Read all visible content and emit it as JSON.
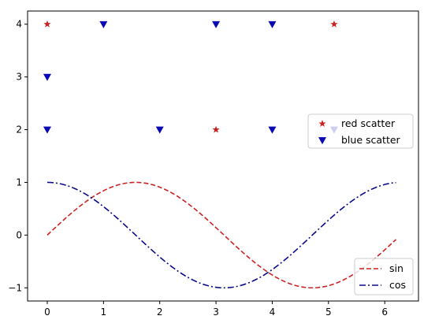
{
  "chart_data": {
    "type": "scatter",
    "title": "",
    "xlabel": "",
    "ylabel": "",
    "xlim": [
      -0.35,
      6.6
    ],
    "ylim": [
      -1.25,
      4.25
    ],
    "xticks": [
      0,
      1,
      2,
      3,
      4,
      5,
      6
    ],
    "yticks": [
      -1,
      0,
      1,
      2,
      3,
      4
    ],
    "xtick_labels": [
      "0",
      "1",
      "2",
      "3",
      "4",
      "5",
      "6"
    ],
    "ytick_labels": [
      "−1",
      "0",
      "1",
      "2",
      "3",
      "4"
    ],
    "grid": false,
    "colors": {
      "red": "#cc2222",
      "blue": "#0a0ab4",
      "navy": "#0a0a8c"
    },
    "scatter_series": [
      {
        "name": "red scatter",
        "marker": "star",
        "color": "#cc2222",
        "points": [
          [
            0,
            4
          ],
          [
            3,
            2
          ],
          [
            5.1,
            4
          ]
        ]
      },
      {
        "name": "blue scatter",
        "marker": "triangle-down",
        "color": "#0a0ab4",
        "points": [
          [
            0,
            3
          ],
          [
            0,
            2
          ],
          [
            1,
            4
          ],
          [
            2,
            2
          ],
          [
            3,
            4
          ],
          [
            4,
            4
          ],
          [
            4,
            2
          ],
          [
            5.1,
            2
          ]
        ]
      }
    ],
    "line_series": [
      {
        "name": "sin",
        "function": "sin",
        "x_range": [
          0,
          6.2
        ],
        "style": "dashed",
        "color": "#cc2222"
      },
      {
        "name": "cos",
        "function": "cos",
        "x_range": [
          0,
          6.2
        ],
        "style": "dashdot",
        "color": "#0a0a8c"
      }
    ],
    "legends": [
      {
        "placement": "center-right",
        "entries": [
          "red scatter",
          "blue scatter"
        ]
      },
      {
        "placement": "lower-right",
        "entries": [
          "sin",
          "cos"
        ]
      }
    ]
  }
}
